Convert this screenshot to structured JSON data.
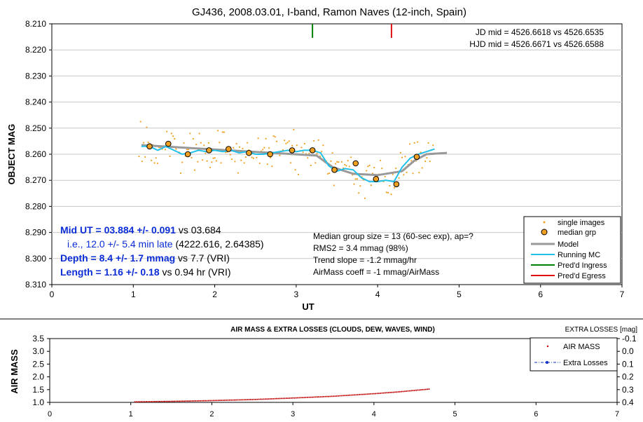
{
  "chart_data": [
    {
      "type": "scatter",
      "title": "GJ436, 2008.03.01, I-band, Ramon Naves (12-inch, Spain)",
      "xlabel": "UT",
      "ylabel": "OBJECT MAG",
      "xlim": [
        0,
        7
      ],
      "ylim": [
        8.21,
        8.31
      ],
      "y_inverted": true,
      "x_ticks": [
        "0",
        "1",
        "2",
        "3",
        "4",
        "5",
        "6",
        "7"
      ],
      "y_ticks": [
        "8.210",
        "8.220",
        "8.230",
        "8.240",
        "8.250",
        "8.260",
        "8.270",
        "8.280",
        "8.290",
        "8.300",
        "8.310"
      ],
      "grid": "horizontal",
      "legend_position": "bottom-right",
      "legend": [
        {
          "label": "single images",
          "color": "#f0a020",
          "marker": "dot"
        },
        {
          "label": "median grp",
          "color": "#f0a020",
          "marker": "circle"
        },
        {
          "label": "Model",
          "color": "#999999",
          "marker": "line"
        },
        {
          "label": "Running MC",
          "color": "#22c0e8",
          "marker": "line"
        },
        {
          "label": "Pred'd Ingress",
          "color": "#008000",
          "marker": "line"
        },
        {
          "label": "Pred'd Egress",
          "color": "#e01010",
          "marker": "line"
        }
      ],
      "annotations": {
        "jd_mid": "JD mid = 4526.6618 vs 4526.6535",
        "hjd_mid": "HJD mid = 4526.6671 vs 4526.6588",
        "mid_ut_bold": "Mid UT = 03.884 +/- 0.091",
        "mid_ut_rest": " vs 03.684",
        "late": "i.e., 12.0 +/- 5.4 min late",
        "late_rest": " (4222.616, 2.64385)",
        "depth_bold": "Depth = 8.4 +/- 1.7 mmag",
        "depth_rest": " vs 7.7 (VRI)",
        "length_bold": "Length = 1.16 +/- 0.18",
        "length_rest": " vs 0.94 hr (VRI)",
        "stats": [
          "Median group size = 13 (60-sec exp), ap=?",
          "RMS2 = 3.4 mmag (98%)",
          "Trend slope = -1.2 mmag/hr",
          "AirMass coeff = -1 mmag/AirMass"
        ]
      },
      "ingress_ut": 3.2,
      "egress_ut": 4.17,
      "median_grp": {
        "x": [
          1.2,
          1.43,
          1.67,
          1.93,
          2.17,
          2.42,
          2.68,
          2.95,
          3.2,
          3.47,
          3.73,
          3.98,
          4.23,
          4.48
        ],
        "y": [
          8.257,
          8.256,
          8.26,
          8.2585,
          8.258,
          8.2595,
          8.26,
          8.2585,
          8.2585,
          8.266,
          8.2635,
          8.2695,
          8.2715,
          8.261
        ]
      },
      "model": {
        "x": [
          1.1,
          3.25,
          3.45,
          3.7,
          4.0,
          4.3,
          4.45,
          4.6,
          4.85
        ],
        "y": [
          8.2565,
          8.2605,
          8.265,
          8.2675,
          8.268,
          8.2665,
          8.2625,
          8.26,
          8.2595
        ]
      },
      "running_mc": {
        "x": [
          1.1,
          1.2,
          1.3,
          1.4,
          1.5,
          1.6,
          1.7,
          1.8,
          1.9,
          2.0,
          2.1,
          2.2,
          2.3,
          2.4,
          2.5,
          2.6,
          2.7,
          2.8,
          2.9,
          3.0,
          3.1,
          3.2,
          3.3,
          3.4,
          3.5,
          3.6,
          3.7,
          3.8,
          3.9,
          4.0,
          4.1,
          4.2,
          4.3,
          4.4,
          4.5,
          4.6,
          4.7
        ],
        "y": [
          8.257,
          8.257,
          8.2585,
          8.257,
          8.2585,
          8.26,
          8.2595,
          8.2585,
          8.259,
          8.2585,
          8.259,
          8.2585,
          8.2595,
          8.259,
          8.26,
          8.26,
          8.2595,
          8.259,
          8.2585,
          8.259,
          8.2585,
          8.2585,
          8.2595,
          8.2645,
          8.2665,
          8.2655,
          8.266,
          8.269,
          8.2705,
          8.2705,
          8.27,
          8.2705,
          8.265,
          8.2615,
          8.26,
          8.259,
          8.258
        ]
      }
    },
    {
      "type": "scatter",
      "title": "AIR MASS & EXTRA LOSSES (CLOUDS, DEW, WAVES, WIND)",
      "ylabel": "AIR MASS",
      "y2label": "EXTRA LOSSES [mag]",
      "xlim": [
        0,
        7
      ],
      "ylim": [
        1.0,
        3.5
      ],
      "y2lim": [
        -0.1,
        0.4
      ],
      "x_ticks": [
        "0",
        "1",
        "2",
        "3",
        "4",
        "5",
        "6",
        "7"
      ],
      "y_ticks": [
        "1.0",
        "1.5",
        "2.0",
        "2.5",
        "3.0",
        "3.5"
      ],
      "y2_ticks": [
        "-0.1",
        "0.0",
        "0.1",
        "0.2",
        "0.3",
        "0.4"
      ],
      "legend_position": "top-right",
      "legend": [
        {
          "label": "AIR MASS",
          "color": "#c00000",
          "marker": "dot"
        },
        {
          "label": "Extra Losses",
          "color": "#1030c0",
          "marker": "dash-dot"
        }
      ],
      "airmass": {
        "x": [
          1.05,
          1.5,
          2.0,
          2.5,
          3.0,
          3.5,
          4.0,
          4.3,
          4.68
        ],
        "y": [
          1.02,
          1.04,
          1.07,
          1.11,
          1.17,
          1.24,
          1.34,
          1.41,
          1.52
        ]
      }
    }
  ]
}
